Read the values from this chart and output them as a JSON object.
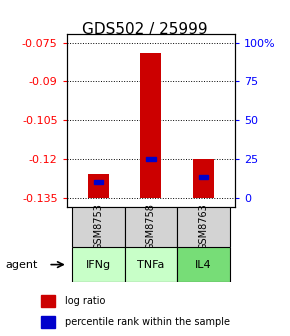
{
  "title": "GDS502 / 25999",
  "samples": [
    "GSM8753",
    "GSM8758",
    "GSM8763"
  ],
  "agents": [
    "IFNg",
    "TNFa",
    "IL4"
  ],
  "bar_bottoms": [
    -0.135,
    -0.135,
    -0.135
  ],
  "bar_tops": [
    -0.126,
    -0.079,
    -0.12
  ],
  "percentile_values": [
    -0.129,
    -0.12,
    -0.127
  ],
  "yticks_left": [
    -0.075,
    -0.09,
    -0.105,
    -0.12,
    -0.135
  ],
  "ylim_left": [
    -0.1385,
    -0.0715
  ],
  "yticks_right_pct": [
    0,
    25,
    50,
    75,
    100
  ],
  "ytick_right_labels": [
    "0",
    "25",
    "50",
    "75",
    "100%"
  ],
  "data_min": -0.135,
  "data_max": -0.075,
  "bar_color": "#cc0000",
  "percentile_color": "#0000cc",
  "sample_bg_color": "#d3d3d3",
  "agent_bg_colors": [
    "#c8ffc8",
    "#c8ffc8",
    "#77dd77"
  ],
  "title_fontsize": 11,
  "axis_fontsize": 8,
  "legend_fontsize": 7,
  "bar_width": 0.4
}
